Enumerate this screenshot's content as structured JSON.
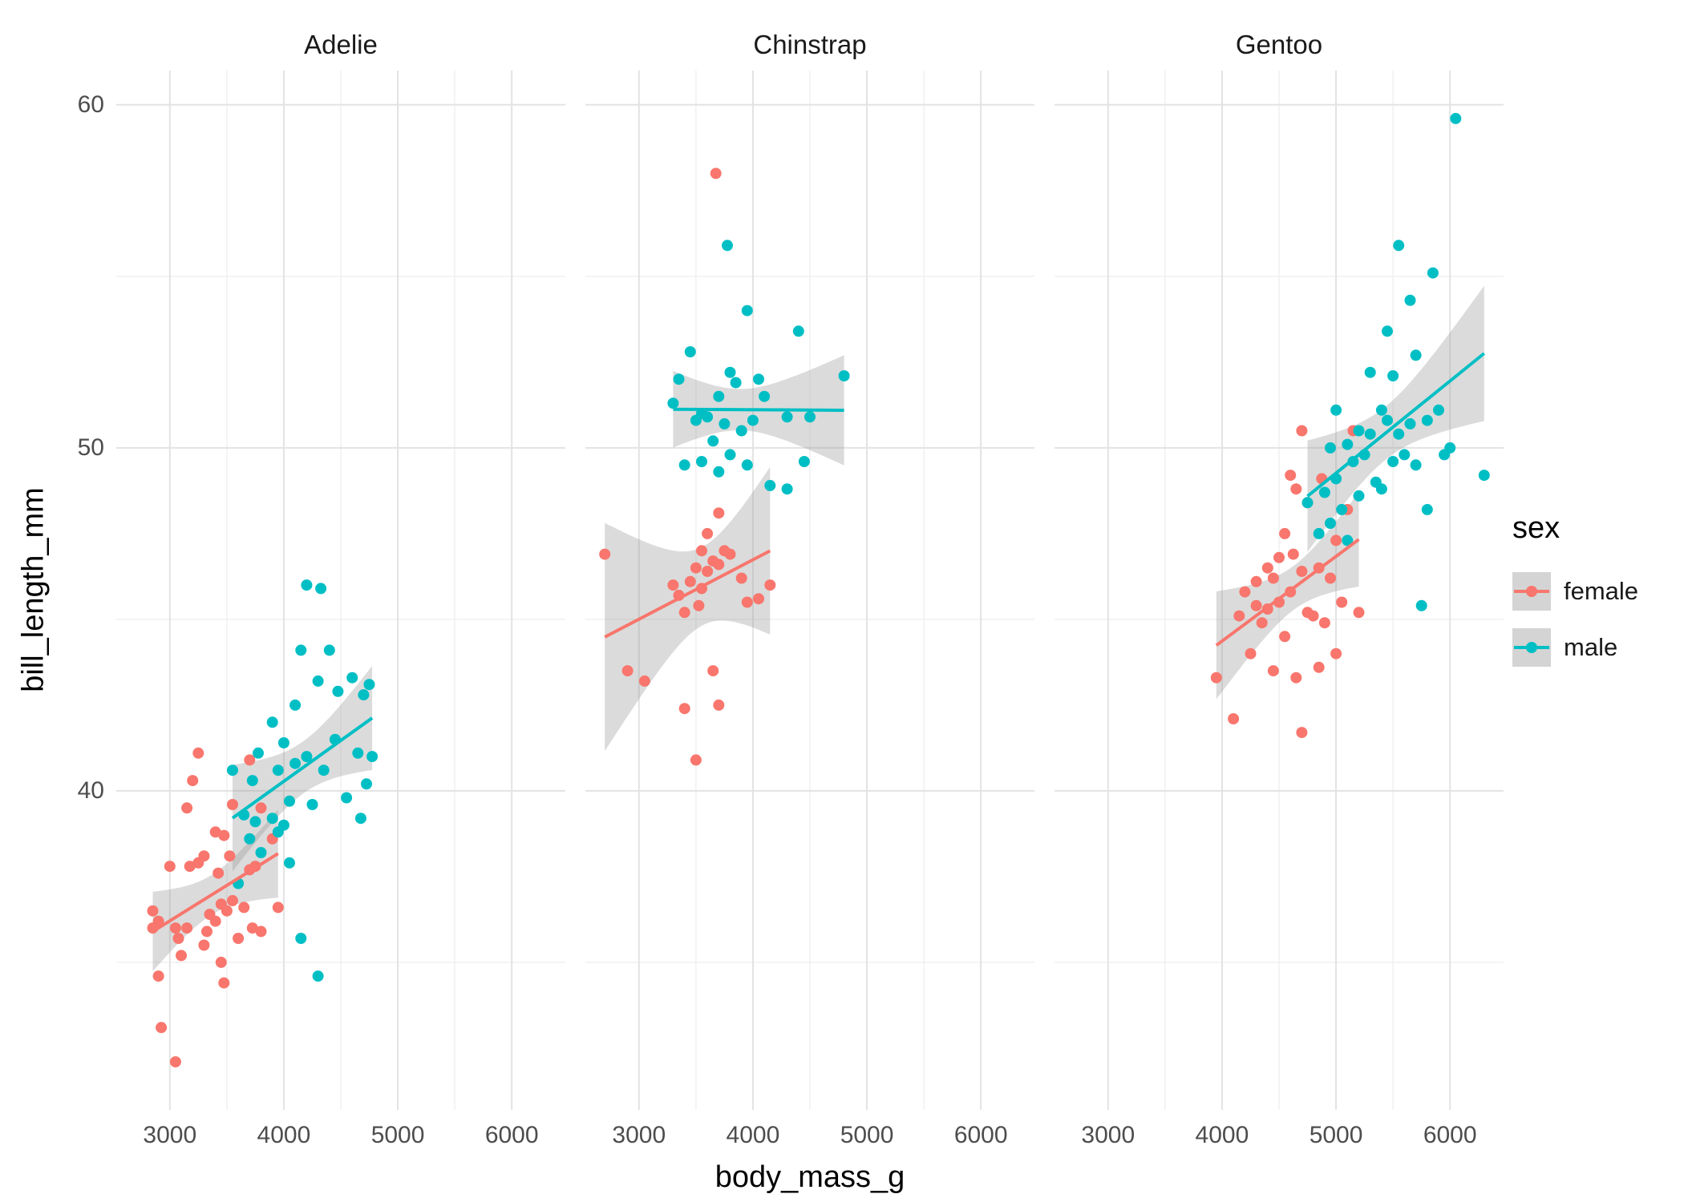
{
  "figure": {
    "background": "#FFFFFF",
    "panel_gridline_major": "#E3E3E3",
    "panel_gridline_minor": "#F0F0F0"
  },
  "axes": {
    "x_label": "body_mass_g",
    "y_label": "bill_length_mm",
    "x_ticks": [
      3000,
      4000,
      5000,
      6000
    ],
    "x_minor_ticks": [
      3500,
      4500,
      5500
    ],
    "y_ticks": [
      40,
      50,
      60
    ],
    "y_minor_ticks": [
      35,
      45,
      55
    ],
    "x_domain": [
      2530,
      6470
    ],
    "y_domain": [
      30.7,
      61.0
    ],
    "tick_color": "#4D4D4D"
  },
  "facets": [
    "Adelie",
    "Chinstrap",
    "Gentoo"
  ],
  "legend": {
    "title": "sex",
    "key_fill": "#D4D4D4",
    "entries": [
      {
        "label": "female",
        "color": "#F8766D"
      },
      {
        "label": "male",
        "color": "#00BFC4"
      }
    ]
  },
  "chart_data": {
    "type": "scatter",
    "title": "",
    "xlabel": "body_mass_g",
    "ylabel": "bill_length_mm",
    "facet_variable": "species",
    "color_variable": "sex",
    "smooth": "linear regression with 95% confidence band",
    "legend_position": "right",
    "grid": true,
    "xlim": [
      2530,
      6470
    ],
    "ylim": [
      30.7,
      61.0
    ],
    "band_color": "#999999",
    "band_opacity": 0.35,
    "series": [
      {
        "facet": "Adelie",
        "name": "female",
        "color": "#F8766D",
        "points": [
          [
            2850,
            36.5
          ],
          [
            2850,
            36.0
          ],
          [
            2900,
            36.2
          ],
          [
            2900,
            34.6
          ],
          [
            2925,
            33.1
          ],
          [
            3000,
            37.8
          ],
          [
            3050,
            32.1
          ],
          [
            3050,
            36.0
          ],
          [
            3075,
            35.7
          ],
          [
            3100,
            35.2
          ],
          [
            3150,
            36.0
          ],
          [
            3150,
            39.5
          ],
          [
            3175,
            37.8
          ],
          [
            3200,
            40.3
          ],
          [
            3250,
            37.9
          ],
          [
            3250,
            41.1
          ],
          [
            3300,
            35.5
          ],
          [
            3300,
            38.1
          ],
          [
            3325,
            35.9
          ],
          [
            3350,
            36.4
          ],
          [
            3400,
            36.2
          ],
          [
            3400,
            38.8
          ],
          [
            3425,
            37.6
          ],
          [
            3450,
            36.7
          ],
          [
            3450,
            35.0
          ],
          [
            3475,
            34.4
          ],
          [
            3475,
            38.7
          ],
          [
            3500,
            36.5
          ],
          [
            3525,
            38.1
          ],
          [
            3550,
            36.8
          ],
          [
            3550,
            39.6
          ],
          [
            3600,
            35.7
          ],
          [
            3650,
            36.6
          ],
          [
            3700,
            37.7
          ],
          [
            3700,
            40.9
          ],
          [
            3725,
            36.0
          ],
          [
            3750,
            37.8
          ],
          [
            3800,
            39.5
          ],
          [
            3800,
            35.9
          ],
          [
            3900,
            38.6
          ],
          [
            3950,
            36.6
          ]
        ]
      },
      {
        "facet": "Adelie",
        "name": "male",
        "color": "#00BFC4",
        "points": [
          [
            3550,
            40.6
          ],
          [
            3600,
            37.3
          ],
          [
            3650,
            39.3
          ],
          [
            3700,
            38.6
          ],
          [
            3725,
            40.3
          ],
          [
            3750,
            39.1
          ],
          [
            3775,
            41.1
          ],
          [
            3800,
            38.2
          ],
          [
            3900,
            39.2
          ],
          [
            3900,
            42.0
          ],
          [
            3950,
            40.6
          ],
          [
            3950,
            38.8
          ],
          [
            4000,
            39.0
          ],
          [
            4000,
            41.4
          ],
          [
            4050,
            39.7
          ],
          [
            4050,
            37.9
          ],
          [
            4100,
            40.8
          ],
          [
            4100,
            42.5
          ],
          [
            4150,
            44.1
          ],
          [
            4150,
            35.7
          ],
          [
            4200,
            41.0
          ],
          [
            4200,
            46.0
          ],
          [
            4250,
            39.6
          ],
          [
            4300,
            43.2
          ],
          [
            4300,
            34.6
          ],
          [
            4325,
            45.9
          ],
          [
            4350,
            40.6
          ],
          [
            4400,
            44.1
          ],
          [
            4450,
            41.5
          ],
          [
            4475,
            42.9
          ],
          [
            4550,
            39.8
          ],
          [
            4600,
            43.3
          ],
          [
            4650,
            41.1
          ],
          [
            4675,
            39.2
          ],
          [
            4700,
            42.8
          ],
          [
            4725,
            40.2
          ],
          [
            4750,
            43.1
          ],
          [
            4775,
            41.0
          ]
        ]
      },
      {
        "facet": "Chinstrap",
        "name": "female",
        "color": "#F8766D",
        "points": [
          [
            2700,
            46.9
          ],
          [
            2900,
            43.5
          ],
          [
            3050,
            43.2
          ],
          [
            3300,
            46.0
          ],
          [
            3350,
            45.7
          ],
          [
            3400,
            42.4
          ],
          [
            3400,
            45.2
          ],
          [
            3450,
            46.1
          ],
          [
            3500,
            40.9
          ],
          [
            3500,
            46.5
          ],
          [
            3525,
            45.4
          ],
          [
            3550,
            47.0
          ],
          [
            3550,
            45.9
          ],
          [
            3600,
            46.4
          ],
          [
            3600,
            47.5
          ],
          [
            3650,
            43.5
          ],
          [
            3650,
            46.7
          ],
          [
            3675,
            58.0
          ],
          [
            3700,
            42.5
          ],
          [
            3700,
            46.6
          ],
          [
            3700,
            48.1
          ],
          [
            3750,
            47.0
          ],
          [
            3800,
            46.9
          ],
          [
            3900,
            46.2
          ],
          [
            3950,
            45.5
          ],
          [
            4050,
            45.6
          ],
          [
            4150,
            46.0
          ]
        ]
      },
      {
        "facet": "Chinstrap",
        "name": "male",
        "color": "#00BFC4",
        "points": [
          [
            3300,
            51.3
          ],
          [
            3350,
            52.0
          ],
          [
            3400,
            49.5
          ],
          [
            3450,
            52.8
          ],
          [
            3500,
            50.8
          ],
          [
            3550,
            49.6
          ],
          [
            3550,
            51.0
          ],
          [
            3600,
            50.9
          ],
          [
            3650,
            50.2
          ],
          [
            3700,
            49.3
          ],
          [
            3700,
            51.5
          ],
          [
            3750,
            50.7
          ],
          [
            3775,
            55.9
          ],
          [
            3800,
            49.8
          ],
          [
            3800,
            52.2
          ],
          [
            3850,
            51.9
          ],
          [
            3900,
            50.5
          ],
          [
            3950,
            54.0
          ],
          [
            3950,
            49.5
          ],
          [
            4000,
            50.8
          ],
          [
            4050,
            52.0
          ],
          [
            4100,
            51.5
          ],
          [
            4150,
            48.9
          ],
          [
            4300,
            48.8
          ],
          [
            4300,
            50.9
          ],
          [
            4400,
            53.4
          ],
          [
            4450,
            49.6
          ],
          [
            4500,
            50.9
          ],
          [
            4800,
            52.1
          ]
        ]
      },
      {
        "facet": "Gentoo",
        "name": "female",
        "color": "#F8766D",
        "points": [
          [
            3950,
            43.3
          ],
          [
            4100,
            42.1
          ],
          [
            4150,
            45.1
          ],
          [
            4200,
            45.8
          ],
          [
            4250,
            44.0
          ],
          [
            4300,
            45.4
          ],
          [
            4300,
            46.1
          ],
          [
            4350,
            44.9
          ],
          [
            4400,
            46.5
          ],
          [
            4400,
            45.3
          ],
          [
            4450,
            46.2
          ],
          [
            4450,
            43.5
          ],
          [
            4500,
            45.5
          ],
          [
            4500,
            46.8
          ],
          [
            4550,
            44.5
          ],
          [
            4550,
            47.5
          ],
          [
            4600,
            45.8
          ],
          [
            4600,
            49.2
          ],
          [
            4625,
            46.9
          ],
          [
            4650,
            43.3
          ],
          [
            4650,
            48.8
          ],
          [
            4700,
            46.4
          ],
          [
            4700,
            41.7
          ],
          [
            4700,
            50.5
          ],
          [
            4750,
            45.2
          ],
          [
            4750,
            48.4
          ],
          [
            4800,
            45.1
          ],
          [
            4850,
            46.5
          ],
          [
            4850,
            43.6
          ],
          [
            4875,
            49.1
          ],
          [
            4900,
            44.9
          ],
          [
            4950,
            46.2
          ],
          [
            5000,
            47.3
          ],
          [
            5000,
            44.0
          ],
          [
            5050,
            45.5
          ],
          [
            5100,
            48.2
          ],
          [
            5150,
            50.5
          ],
          [
            5200,
            45.2
          ]
        ]
      },
      {
        "facet": "Gentoo",
        "name": "male",
        "color": "#00BFC4",
        "points": [
          [
            4750,
            48.4
          ],
          [
            4850,
            47.5
          ],
          [
            4900,
            48.7
          ],
          [
            4950,
            47.8
          ],
          [
            4950,
            50.0
          ],
          [
            5000,
            49.1
          ],
          [
            5000,
            51.1
          ],
          [
            5050,
            48.2
          ],
          [
            5100,
            50.1
          ],
          [
            5100,
            47.3
          ],
          [
            5150,
            49.6
          ],
          [
            5200,
            50.5
          ],
          [
            5200,
            48.6
          ],
          [
            5250,
            49.8
          ],
          [
            5300,
            50.4
          ],
          [
            5300,
            52.2
          ],
          [
            5350,
            49.0
          ],
          [
            5400,
            51.1
          ],
          [
            5400,
            48.8
          ],
          [
            5450,
            50.8
          ],
          [
            5450,
            53.4
          ],
          [
            5500,
            49.6
          ],
          [
            5500,
            52.1
          ],
          [
            5550,
            50.4
          ],
          [
            5550,
            55.9
          ],
          [
            5600,
            49.8
          ],
          [
            5650,
            50.7
          ],
          [
            5650,
            54.3
          ],
          [
            5700,
            49.5
          ],
          [
            5700,
            52.7
          ],
          [
            5750,
            45.4
          ],
          [
            5800,
            50.8
          ],
          [
            5800,
            48.2
          ],
          [
            5850,
            55.1
          ],
          [
            5900,
            51.1
          ],
          [
            5950,
            49.8
          ],
          [
            6000,
            50.0
          ],
          [
            6050,
            59.6
          ],
          [
            6300,
            49.2
          ]
        ]
      }
    ]
  }
}
